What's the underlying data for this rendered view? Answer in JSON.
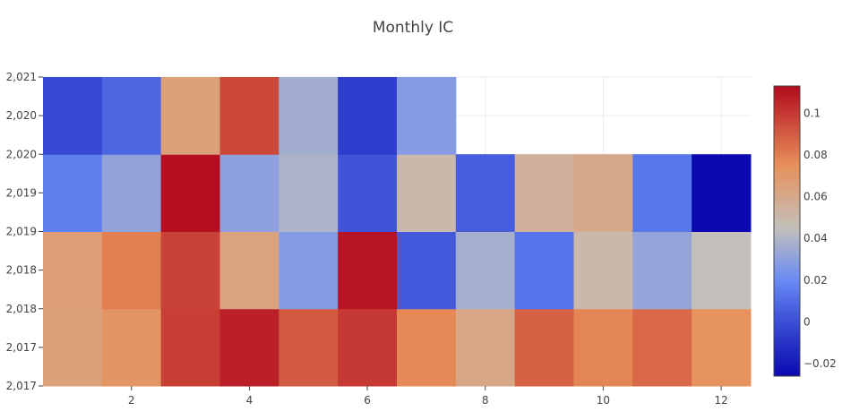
{
  "chart_data": {
    "type": "heatmap",
    "title": "Monthly IC",
    "x": [
      1,
      2,
      3,
      4,
      5,
      6,
      7,
      8,
      9,
      10,
      11,
      12
    ],
    "y": [
      2017,
      2018,
      2019,
      2020
    ],
    "xlim": [
      0.5,
      12.5
    ],
    "ylim": [
      2016.5,
      2020.5
    ],
    "x_tick_values": [
      2,
      4,
      6,
      8,
      10,
      12
    ],
    "x_tick_labels": [
      "2",
      "4",
      "6",
      "8",
      "10",
      "12"
    ],
    "y_tick_values": [
      2016.5,
      2017,
      2017.5,
      2018,
      2018.5,
      2019,
      2019.5,
      2020,
      2020.5
    ],
    "y_tick_labels": [
      "2,017",
      "2,017",
      "2,018",
      "2,018",
      "2,019",
      "2,019",
      "2,020",
      "2,020",
      "2,021"
    ],
    "z": [
      [
        0.065,
        0.072,
        0.098,
        0.107,
        0.09,
        0.1,
        0.077,
        0.061,
        0.088,
        0.078,
        0.086,
        0.073
      ],
      [
        0.066,
        0.08,
        0.097,
        0.064,
        0.027,
        0.11,
        0.004,
        0.037,
        0.012,
        0.05,
        0.032,
        0.045
      ],
      [
        0.016,
        0.031,
        0.112,
        0.03,
        0.039,
        0.002,
        0.05,
        0.005,
        0.055,
        0.06,
        0.013,
        -0.026
      ],
      [
        -0.002,
        0.008,
        0.065,
        0.095,
        0.036,
        -0.006,
        0.028,
        null,
        null,
        null,
        null,
        null
      ]
    ],
    "zlim": [
      -0.026,
      0.113
    ],
    "colorbar": {
      "tick_values": [
        -0.02,
        0,
        0.02,
        0.04,
        0.06,
        0.08,
        0.1
      ],
      "tick_labels": [
        "−0.02",
        "0",
        "0.02",
        "0.04",
        "0.06",
        "0.08",
        "0.1"
      ]
    },
    "colorscale": [
      [
        -0.026,
        "#0a0ab0"
      ],
      [
        0.0,
        "#3a4ed6"
      ],
      [
        0.02,
        "#6a8bf5"
      ],
      [
        0.045,
        "#c3c0bb"
      ],
      [
        0.075,
        "#e8905a"
      ],
      [
        0.113,
        "#b30a1e"
      ]
    ],
    "grid": true,
    "legend": "colorbar-right"
  }
}
